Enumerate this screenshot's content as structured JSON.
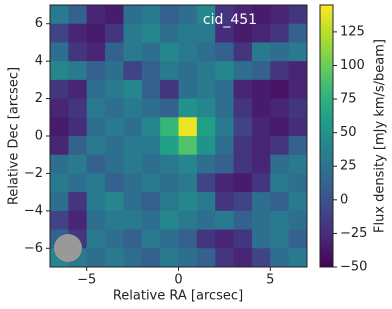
{
  "chart_data": {
    "type": "heatmap",
    "label": "cid_451",
    "xlabel": "Relative RA [arcsec]",
    "ylabel": "Relative Dec [arcsec]",
    "colorbar_label": "Flux density [mJy km/s/beam]",
    "colormap": "viridis",
    "xlim": [
      -7,
      7
    ],
    "ylim": [
      -7,
      7
    ],
    "clim": [
      -50,
      145
    ],
    "xticks": [
      {
        "value": -5,
        "label": "−5"
      },
      0,
      5
    ],
    "yticks": [
      {
        "value": -6,
        "label": "−6"
      },
      {
        "value": -4,
        "label": "−4"
      },
      {
        "value": -2,
        "label": "−2"
      },
      0,
      2,
      4,
      6
    ],
    "cticks": [
      {
        "value": -50,
        "label": "−50"
      },
      {
        "value": -25,
        "label": "−25"
      },
      0,
      25,
      50,
      75,
      100,
      125
    ],
    "z": [
      [
        30,
        10,
        -30,
        -35,
        20,
        30,
        10,
        20,
        40,
        -20,
        -30,
        -35,
        -30,
        -20
      ],
      [
        -10,
        -30,
        -35,
        -20,
        30,
        40,
        20,
        30,
        30,
        -25,
        -35,
        -30,
        -20,
        10
      ],
      [
        20,
        -20,
        -30,
        10,
        30,
        20,
        40,
        30,
        20,
        10,
        -20,
        30,
        20,
        30
      ],
      [
        40,
        30,
        10,
        20,
        -10,
        10,
        30,
        20,
        30,
        40,
        20,
        10,
        -20,
        -30
      ],
      [
        -20,
        -30,
        20,
        30,
        40,
        10,
        -20,
        20,
        30,
        20,
        -30,
        -35,
        -40,
        -30
      ],
      [
        -30,
        -20,
        30,
        20,
        30,
        20,
        10,
        50,
        40,
        20,
        -20,
        -35,
        -30,
        -20
      ],
      [
        -35,
        -25,
        20,
        30,
        20,
        40,
        80,
        140,
        60,
        30,
        -10,
        -30,
        -35,
        -25
      ],
      [
        -30,
        10,
        30,
        20,
        30,
        30,
        60,
        90,
        50,
        20,
        -20,
        -30,
        -20,
        10
      ],
      [
        20,
        30,
        10,
        20,
        30,
        20,
        30,
        40,
        20,
        10,
        -20,
        -30,
        20,
        30
      ],
      [
        30,
        20,
        30,
        10,
        20,
        30,
        20,
        30,
        -10,
        -30,
        -35,
        -20,
        30,
        20
      ],
      [
        20,
        -20,
        30,
        40,
        20,
        10,
        30,
        40,
        30,
        -20,
        -10,
        20,
        10,
        30
      ],
      [
        -10,
        -30,
        20,
        30,
        30,
        20,
        40,
        30,
        20,
        30,
        10,
        20,
        30,
        20
      ],
      [
        10,
        -20,
        30,
        20,
        10,
        30,
        20,
        10,
        -20,
        -30,
        -20,
        20,
        30,
        10
      ],
      [
        40,
        30,
        20,
        30,
        20,
        10,
        30,
        20,
        10,
        -20,
        -30,
        -10,
        20,
        30
      ]
    ]
  }
}
